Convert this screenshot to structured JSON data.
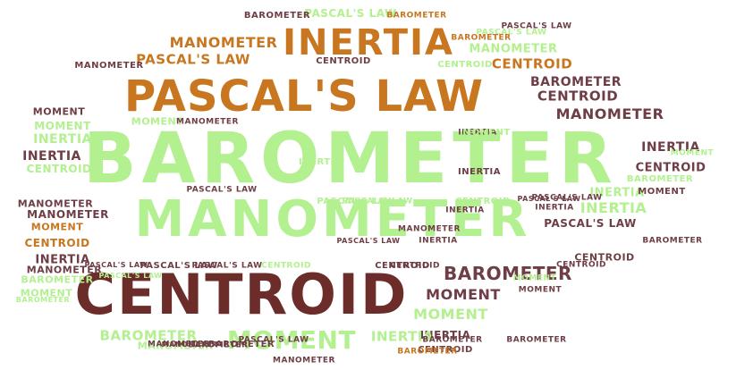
{
  "colors": {
    "green": "#b3f08f",
    "orange": "#c8761f",
    "maroon": "#6b2c2a",
    "plum": "#6e3d45"
  },
  "words": [
    {
      "text": "BAROMETER",
      "color": "green"
    },
    {
      "text": "MANOMETER",
      "color": "green"
    },
    {
      "text": "CENTROID",
      "color": "maroon"
    },
    {
      "text": "PASCAL'S LAW",
      "color": "orange"
    },
    {
      "text": "INERTIA",
      "color": "orange"
    },
    {
      "text": "MOMENT",
      "color": "green"
    },
    {
      "text": "BAROMETER",
      "color": "plum"
    },
    {
      "text": "MANOMETER",
      "color": "orange"
    },
    {
      "text": "PASCAL'S LAW",
      "color": "orange"
    },
    {
      "text": "CENTROID",
      "color": "orange"
    },
    {
      "text": "MANOMETER",
      "color": "plum"
    },
    {
      "text": "CENTROID",
      "color": "plum"
    },
    {
      "text": "BAROMETER",
      "color": "plum"
    },
    {
      "text": "PASCAL'S LAW",
      "color": "green"
    },
    {
      "text": "BAROMETER",
      "color": "plum"
    },
    {
      "text": "MANOMETER",
      "color": "green"
    },
    {
      "text": "PASCAL'S LAW",
      "color": "plum"
    },
    {
      "text": "MOMENT",
      "color": "plum"
    },
    {
      "text": "INERTIA",
      "color": "green"
    },
    {
      "text": "MOMENT",
      "color": "green"
    },
    {
      "text": "BAROMETER",
      "color": "green"
    },
    {
      "text": "INERTIA",
      "color": "plum"
    },
    {
      "text": "CENTROID",
      "color": "plum"
    },
    {
      "text": "INERTIA",
      "color": "green"
    },
    {
      "text": "INERTIA",
      "color": "plum"
    },
    {
      "text": "CENTROID",
      "color": "green"
    },
    {
      "text": "CENTROID",
      "color": "plum"
    },
    {
      "text": "MOMENT",
      "color": "green"
    },
    {
      "text": "MANOMETER",
      "color": "plum"
    },
    {
      "text": "MOMENT",
      "color": "orange"
    },
    {
      "text": "BAROMETER",
      "color": "green"
    },
    {
      "text": "MANOMETER",
      "color": "plum"
    },
    {
      "text": "MOMENT",
      "color": "green"
    },
    {
      "text": "CENTROID",
      "color": "orange"
    },
    {
      "text": "INERTIA",
      "color": "plum"
    },
    {
      "text": "PASCAL'S LAW",
      "color": "plum"
    },
    {
      "text": "MANOMETER",
      "color": "green"
    },
    {
      "text": "INERTIA",
      "color": "plum"
    },
    {
      "text": "BAROMETER",
      "color": "orange"
    },
    {
      "text": "PASCAL'S LAW",
      "color": "plum"
    },
    {
      "text": "PASCAL'S LAW",
      "color": "plum"
    },
    {
      "text": "MOMENT",
      "color": "green"
    },
    {
      "text": "INERTIA",
      "color": "green"
    },
    {
      "text": "BAROMETER",
      "color": "plum"
    },
    {
      "text": "CENTROID",
      "color": "plum"
    },
    {
      "text": "INERTIA",
      "color": "green"
    },
    {
      "text": "MOMENT",
      "color": "plum"
    },
    {
      "text": "BAROMETER",
      "color": "green"
    },
    {
      "text": "MANOMETER",
      "color": "plum"
    },
    {
      "text": "MANOMETER",
      "color": "plum"
    },
    {
      "text": "BAROMETER",
      "color": "plum"
    },
    {
      "text": "CENTROID",
      "color": "green"
    },
    {
      "text": "PASCAL'S LAW",
      "color": "green"
    },
    {
      "text": "CENTROID",
      "color": "green"
    },
    {
      "text": "MANOMETER",
      "color": "plum"
    },
    {
      "text": "MOMENT",
      "color": "plum"
    },
    {
      "text": "BAROMETER",
      "color": "green"
    },
    {
      "text": "PASCAL'S LAW",
      "color": "plum"
    },
    {
      "text": "INERTIA",
      "color": "plum"
    },
    {
      "text": "CENTROID",
      "color": "green"
    },
    {
      "text": "MOMENT",
      "color": "plum"
    },
    {
      "text": "PASCAL'S LAW",
      "color": "green"
    },
    {
      "text": "CENTROID",
      "color": "plum"
    },
    {
      "text": "INERTIA",
      "color": "green"
    },
    {
      "text": "BAROMETER",
      "color": "plum"
    },
    {
      "text": "MOMENT",
      "color": "green"
    },
    {
      "text": "MANOMETER",
      "color": "plum"
    },
    {
      "text": "BAROMETER",
      "color": "orange"
    },
    {
      "text": "MOMENT",
      "color": "green"
    },
    {
      "text": "INERTIA",
      "color": "plum"
    },
    {
      "text": "CENTROID",
      "color": "plum"
    },
    {
      "text": "PASCAL'S LAW",
      "color": "green"
    },
    {
      "text": "MANOMETER",
      "color": "plum"
    },
    {
      "text": "BAROMETER",
      "color": "plum"
    },
    {
      "text": "MANOMETER",
      "color": "plum"
    },
    {
      "text": "PASCAL'S LAW",
      "color": "plum"
    },
    {
      "text": "BAROMETER",
      "color": "plum"
    },
    {
      "text": "INERTIA",
      "color": "plum"
    },
    {
      "text": "PASCAL'S LAW",
      "color": "plum"
    },
    {
      "text": "INERTIA",
      "color": "plum"
    },
    {
      "text": "PASCAL'S LAW",
      "color": "plum"
    },
    {
      "text": "PASCAL'S LAW",
      "color": "green"
    },
    {
      "text": "CENTROID",
      "color": "plum"
    },
    {
      "text": "MOMENT",
      "color": "green"
    },
    {
      "text": "CENTROID",
      "color": "plum"
    },
    {
      "text": "INERTIA",
      "color": "plum"
    },
    {
      "text": "PASCAL'S LAW",
      "color": "plum"
    },
    {
      "text": "BAROMETER",
      "color": "orange"
    },
    {
      "text": "MANOMETER",
      "color": "plum"
    },
    {
      "text": "PASCAL'S LAW",
      "color": "plum"
    }
  ]
}
